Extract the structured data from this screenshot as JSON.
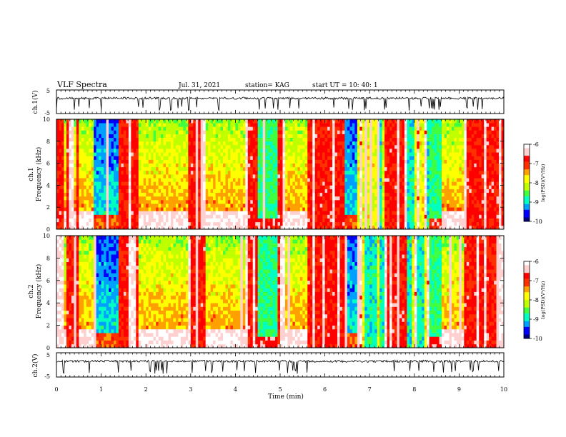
{
  "header": {
    "title": "VLF  Spectra",
    "date": "Jul.  31,  2021",
    "station": "station= KAG",
    "start": "start  UT  =    10: 40: 1"
  },
  "chart_data": {
    "type": "heatmap",
    "title": "VLF  Spectra",
    "xlabel": "Time  (min)",
    "xlim": [
      0,
      10
    ],
    "x_ticks": [
      "0",
      "1",
      "2",
      "3",
      "4",
      "5",
      "6",
      "7",
      "8",
      "9",
      "10"
    ],
    "panels": [
      {
        "id": "ch1_wave",
        "type": "line",
        "ylabel": "ch.1(V)",
        "ylim": [
          -5,
          5
        ],
        "y_ticks": [
          "5",
          "-5"
        ]
      },
      {
        "id": "ch1_spec",
        "type": "heatmap",
        "ylabel_line1": "ch.1",
        "ylabel_line2": "Frequency (kHz)",
        "ylim": [
          0,
          10
        ],
        "y_ticks": [
          "0",
          "2",
          "4",
          "6",
          "8",
          "10"
        ],
        "colorbar": {
          "label": "log(PSD)(V²/Hz)",
          "range": [
            -10,
            -6
          ],
          "ticks": [
            "-6",
            "-7",
            "-8",
            "-9",
            "-10"
          ]
        }
      },
      {
        "id": "ch2_spec",
        "type": "heatmap",
        "ylabel_line1": "ch.2",
        "ylabel_line2": "Frequency (kHz)",
        "ylim": [
          0,
          10
        ],
        "y_ticks": [
          "0",
          "2",
          "4",
          "6",
          "8",
          "10"
        ],
        "colorbar": {
          "label": "log(PSD)(V²/Hz)",
          "range": [
            -10,
            -6
          ],
          "ticks": [
            "-6",
            "-7",
            "-8",
            "-9",
            "-10"
          ]
        }
      },
      {
        "id": "ch2_wave",
        "type": "line",
        "ylabel": "ch.2(V)",
        "ylim": [
          -5,
          5
        ],
        "y_ticks": [
          "5",
          "-5"
        ]
      }
    ],
    "colormap": [
      "#00007a",
      "#0000ff",
      "#00a0ff",
      "#00ffc0",
      "#40ff40",
      "#c0ff00",
      "#ffff00",
      "#ffa000",
      "#ff3000",
      "#ff0000",
      "#ffd0d0",
      "#ffffff"
    ]
  }
}
